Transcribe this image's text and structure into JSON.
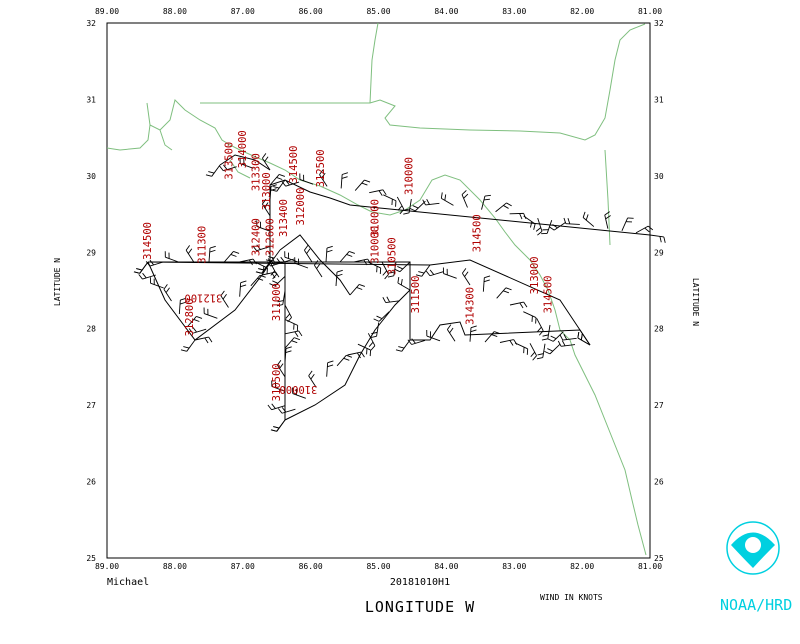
{
  "map": {
    "storm_name": "Michael",
    "flight_id": "20181010H1",
    "xlabel": "LONGITUDE   W",
    "ylabel": "LATITUDE   N",
    "wind_units": "WIND IN KNOTS",
    "agency": "NOAA/HRD",
    "lon_range": [
      89.0,
      81.0
    ],
    "lat_range": [
      25.0,
      32.0
    ],
    "lon_ticks": [
      "89.00",
      "88.00",
      "87.00",
      "86.00",
      "85.00",
      "84.00",
      "83.00",
      "82.00",
      "81.00"
    ],
    "lat_ticks": [
      "25",
      "26",
      "27",
      "28",
      "29",
      "30",
      "31",
      "32"
    ],
    "colors": {
      "coast": "#7fbf7f",
      "altitude": "#b00000",
      "track": "#000000",
      "logo": "#00d0e0"
    },
    "altitude_labels": [
      {
        "text": "314500",
        "lon": 88.35,
        "lat": 28.9,
        "rot": -90
      },
      {
        "text": "311300",
        "lon": 87.55,
        "lat": 28.85,
        "rot": -90
      },
      {
        "text": "312800",
        "lon": 87.73,
        "lat": 27.9,
        "rot": -90
      },
      {
        "text": "312100",
        "lon": 87.3,
        "lat": 28.45,
        "rot": 180
      },
      {
        "text": "313500",
        "lon": 87.15,
        "lat": 29.95,
        "rot": -90
      },
      {
        "text": "314000",
        "lon": 86.95,
        "lat": 30.1,
        "rot": -90
      },
      {
        "text": "313300",
        "lon": 86.75,
        "lat": 29.8,
        "rot": -90
      },
      {
        "text": "313000",
        "lon": 86.6,
        "lat": 29.55,
        "rot": -90
      },
      {
        "text": "314500",
        "lon": 86.2,
        "lat": 29.9,
        "rot": -90
      },
      {
        "text": "313400",
        "lon": 86.35,
        "lat": 29.2,
        "rot": -90
      },
      {
        "text": "312000",
        "lon": 86.1,
        "lat": 29.35,
        "rot": -90
      },
      {
        "text": "312500",
        "lon": 85.8,
        "lat": 29.85,
        "rot": -90
      },
      {
        "text": "312600",
        "lon": 86.55,
        "lat": 28.95,
        "rot": -90
      },
      {
        "text": "312400",
        "lon": 86.75,
        "lat": 28.95,
        "rot": -90
      },
      {
        "text": "311000",
        "lon": 86.45,
        "lat": 28.1,
        "rot": -90
      },
      {
        "text": "310500",
        "lon": 86.45,
        "lat": 27.05,
        "rot": -90
      },
      {
        "text": "310000",
        "lon": 85.9,
        "lat": 27.25,
        "rot": 180
      },
      {
        "text": "310000",
        "lon": 85.0,
        "lat": 28.85,
        "rot": -90
      },
      {
        "text": "310000",
        "lon": 85.0,
        "lat": 29.2,
        "rot": -90
      },
      {
        "text": "310500",
        "lon": 84.75,
        "lat": 28.7,
        "rot": -90
      },
      {
        "text": "311500",
        "lon": 84.4,
        "lat": 28.2,
        "rot": -90
      },
      {
        "text": "310000",
        "lon": 84.5,
        "lat": 29.75,
        "rot": -90
      },
      {
        "text": "314500",
        "lon": 83.5,
        "lat": 29.0,
        "rot": -90
      },
      {
        "text": "314300",
        "lon": 83.6,
        "lat": 28.05,
        "rot": -90
      },
      {
        "text": "313000",
        "lon": 82.65,
        "lat": 28.45,
        "rot": -90
      },
      {
        "text": "314500",
        "lon": 82.45,
        "lat": 28.2,
        "rot": -90
      }
    ]
  }
}
